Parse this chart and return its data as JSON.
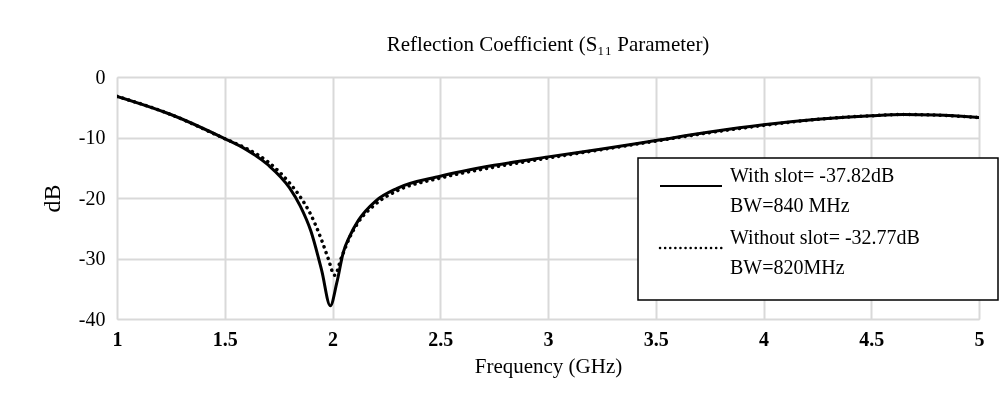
{
  "chart_data": {
    "type": "line",
    "title": "Reflection Coefficient (S₁₁ Parameter)",
    "xlabel": "Frequency (GHz)",
    "ylabel": "dB",
    "xlim": [
      1,
      5
    ],
    "xticks": [
      1,
      1.5,
      2,
      2.5,
      3,
      3.5,
      4,
      4.5,
      5
    ],
    "ylim": [
      -40,
      0
    ],
    "yticks": [
      -40,
      -30,
      -20,
      -10,
      0
    ],
    "grid": true,
    "legend": "right",
    "series": [
      {
        "name": "With slot= -37.82dB\nBW=840 MHz",
        "color": "#000000",
        "line_style": "solid",
        "x": [
          1.0,
          1.25,
          1.5,
          1.6,
          1.7,
          1.8,
          1.85,
          1.9,
          1.95,
          1.99,
          2.02,
          2.05,
          2.08,
          2.12,
          2.2,
          2.3,
          2.5,
          2.75,
          3.0,
          3.25,
          3.5,
          3.75,
          4.0,
          4.25,
          4.5,
          4.65,
          4.8,
          5.0
        ],
        "values": [
          -3.2,
          -6.2,
          -10.2,
          -12.0,
          -14.5,
          -18.3,
          -21.3,
          -25.5,
          -32.0,
          -37.82,
          -34.0,
          -29.0,
          -26.3,
          -23.7,
          -20.5,
          -18.4,
          -16.4,
          -14.6,
          -13.2,
          -11.9,
          -10.5,
          -9.1,
          -7.9,
          -7.0,
          -6.4,
          -6.2,
          -6.3,
          -6.7
        ]
      },
      {
        "name": "Without slot= -32.77dB\nBW=820MHz",
        "color": "#000000",
        "line_style": "dotted",
        "x": [
          1.0,
          1.25,
          1.5,
          1.6,
          1.7,
          1.8,
          1.85,
          1.9,
          1.95,
          1.98,
          2.01,
          2.04,
          2.08,
          2.12,
          2.2,
          2.3,
          2.5,
          2.75,
          3.0,
          3.25,
          3.5,
          3.75,
          4.0,
          4.25,
          4.5,
          4.65,
          4.8,
          5.0
        ],
        "values": [
          -3.2,
          -6.2,
          -10.2,
          -11.8,
          -14.0,
          -17.5,
          -19.8,
          -22.8,
          -27.0,
          -30.0,
          -32.77,
          -30.0,
          -26.5,
          -24.0,
          -21.0,
          -18.8,
          -16.7,
          -14.9,
          -13.4,
          -12.0,
          -10.6,
          -9.2,
          -8.0,
          -7.0,
          -6.4,
          -6.2,
          -6.3,
          -6.7
        ]
      }
    ]
  }
}
